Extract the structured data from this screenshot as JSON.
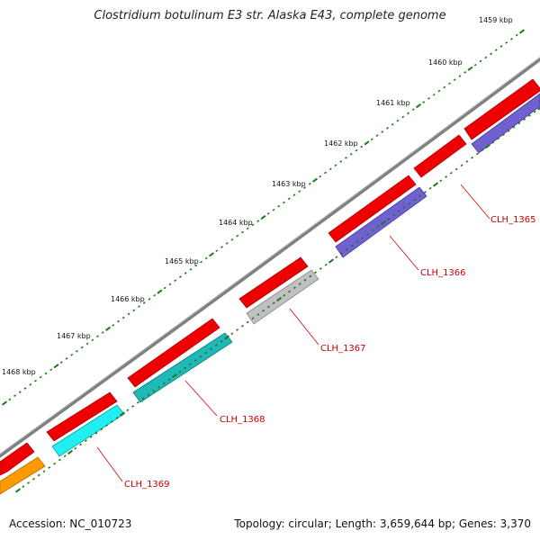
{
  "header": {
    "title": "Clostridium botulinum E3 str. Alaska E43, complete genome"
  },
  "footer": {
    "accession": "Accession: NC_010723",
    "summary": "Topology: circular; Length: 3,659,644 bp; Genes: 3,370"
  },
  "ruler": {
    "ticks": [
      "1459 kbp",
      "1460 kbp",
      "1461 kbp",
      "1462 kbp",
      "1463 kbp",
      "1464 kbp",
      "1465 kbp",
      "1466 kbp",
      "1467 kbp",
      "1468 kbp"
    ]
  },
  "genes": [
    {
      "label": "CLH_1365"
    },
    {
      "label": "CLH_1366"
    },
    {
      "label": "CLH_1367"
    },
    {
      "label": "CLH_1368"
    },
    {
      "label": "CLH_1369"
    }
  ],
  "colors": {
    "backbone": "#808080",
    "cds": "#ee0000",
    "cds_edge": "#aa0000",
    "tick": "#1a7a1a",
    "label_line": "#dd0000",
    "gene_1365": "#7060d0",
    "gene_1366": "#7060d0",
    "gene_1367": "#c0c0c0",
    "gene_1368": "#20b8b8",
    "gene_1369": "#20eef0",
    "gene_extra": "#ff9900"
  }
}
